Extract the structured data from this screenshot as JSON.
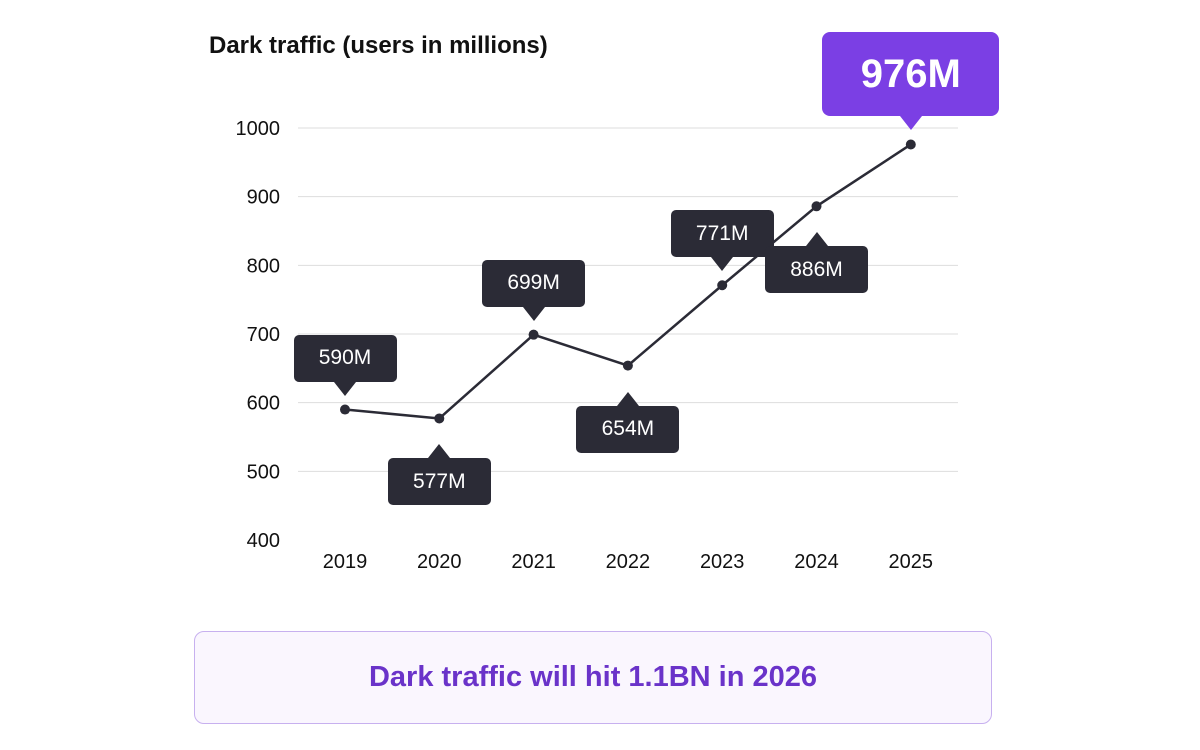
{
  "chart_data": {
    "type": "line",
    "title": "Dark traffic (users in millions)",
    "categories": [
      "2019",
      "2020",
      "2021",
      "2022",
      "2023",
      "2024",
      "2025"
    ],
    "values": [
      590,
      577,
      699,
      654,
      771,
      886,
      976
    ],
    "data_labels": [
      "590M",
      "577M",
      "699M",
      "654M",
      "771M",
      "886M",
      "976M"
    ],
    "label_positions": [
      "above",
      "below",
      "above",
      "below",
      "above",
      "below",
      "above"
    ],
    "highlight_index": 6,
    "ylim": [
      400,
      1000
    ],
    "yticks": [
      400,
      500,
      600,
      700,
      800,
      900,
      1000
    ],
    "xlabel": "",
    "ylabel": "",
    "grid": true,
    "colors": {
      "line": "#2b2b36",
      "callout": "#2b2b36",
      "highlight": "#7b3fe4",
      "grid": "#dddddd"
    }
  },
  "footer": {
    "text": "Dark traffic will hit 1.1BN in 2026",
    "color": "#6a33c9"
  }
}
